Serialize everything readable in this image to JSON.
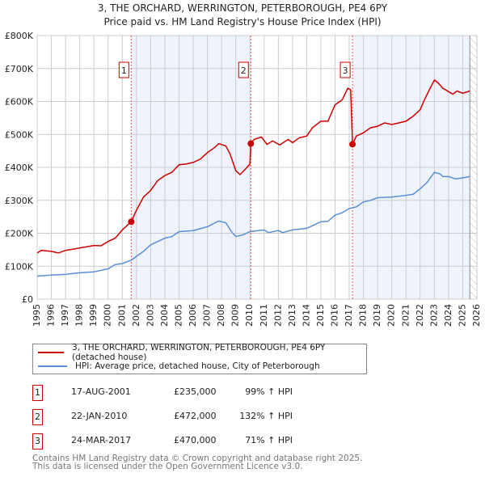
{
  "title": "3, THE ORCHARD, WERRINGTON, PETERBOROUGH, PE4 6PY",
  "subtitle": "Price paid vs. HM Land Registry's House Price Index (HPI)",
  "colors": {
    "property": "#cc0000",
    "hpi": "#5b8fd6",
    "shade": "#eef3fc"
  },
  "chart_data": {
    "type": "line",
    "xlim": [
      1995,
      2026
    ],
    "ylim": [
      0,
      800000
    ],
    "yticks": [
      {
        "v": 0,
        "label": "£0"
      },
      {
        "v": 100000,
        "label": "£100K"
      },
      {
        "v": 200000,
        "label": "£200K"
      },
      {
        "v": 300000,
        "label": "£300K"
      },
      {
        "v": 400000,
        "label": "£400K"
      },
      {
        "v": 500000,
        "label": "£500K"
      },
      {
        "v": 600000,
        "label": "£600K"
      },
      {
        "v": 700000,
        "label": "£700K"
      },
      {
        "v": 800000,
        "label": "£800K"
      }
    ],
    "xticks": [
      "1995",
      "1996",
      "1997",
      "1998",
      "1999",
      "2000",
      "2001",
      "2002",
      "2003",
      "2004",
      "2005",
      "2006",
      "2007",
      "2008",
      "2009",
      "2010",
      "2011",
      "2012",
      "2013",
      "2014",
      "2015",
      "2016",
      "2017",
      "2018",
      "2019",
      "2020",
      "2021",
      "2022",
      "2023",
      "2024",
      "2025",
      "2026"
    ],
    "series": [
      {
        "name": "3, THE ORCHARD, WERRINGTON, PETERBOROUGH, PE4 6PY (detached house)",
        "color": "#cc0000",
        "x": [
          1995,
          1995.3,
          1996,
          1996.5,
          1997,
          1998,
          1999,
          1999.5,
          2000,
          2000.5,
          2001,
          2001.63,
          2002,
          2002.5,
          2003,
          2003.5,
          2004,
          2004.5,
          2005,
          2005.5,
          2006,
          2006.5,
          2007,
          2007.5,
          2007.8,
          2008.3,
          2008.6,
          2009,
          2009.3,
          2009.8,
          2010.0,
          2010.06,
          2010.3,
          2010.8,
          2011.2,
          2011.6,
          2012.1,
          2012.7,
          2013,
          2013.5,
          2014,
          2014.4,
          2015,
          2015.5,
          2016,
          2016.5,
          2016.9,
          2017.1,
          2017.23,
          2017.5,
          2018,
          2018.5,
          2019,
          2019.5,
          2020,
          2020.5,
          2021,
          2021.5,
          2022,
          2022.3,
          2022.7,
          2023,
          2023.3,
          2023.6,
          2024,
          2024.3,
          2024.6,
          2025,
          2025.5
        ],
        "y": [
          140000,
          148000,
          145000,
          140000,
          148000,
          155000,
          163000,
          162000,
          175000,
          185000,
          210000,
          235000,
          270000,
          310000,
          330000,
          360000,
          375000,
          385000,
          408000,
          410000,
          415000,
          425000,
          445000,
          460000,
          472000,
          465000,
          440000,
          390000,
          378000,
          400000,
          410000,
          472000,
          485000,
          492000,
          470000,
          480000,
          468000,
          485000,
          475000,
          490000,
          495000,
          520000,
          540000,
          540000,
          590000,
          605000,
          640000,
          635000,
          470000,
          495000,
          505000,
          520000,
          525000,
          535000,
          530000,
          535000,
          540000,
          555000,
          575000,
          605000,
          640000,
          665000,
          655000,
          640000,
          630000,
          622000,
          632000,
          625000,
          632000
        ]
      },
      {
        "name": "HPI: Average price, detached house, City of Peterborough",
        "color": "#5b8fd6",
        "x": [
          1995,
          1996,
          1997,
          1998,
          1999,
          2000,
          2000.5,
          2001,
          2001.63,
          2002,
          2002.5,
          2003,
          2004,
          2004.5,
          2005,
          2006,
          2007,
          2007.8,
          2008.3,
          2008.7,
          2009,
          2009.5,
          2010,
          2011,
          2011.3,
          2012,
          2012.3,
          2013,
          2014,
          2014.5,
          2015,
          2015.5,
          2016,
          2016.5,
          2017,
          2017.5,
          2018,
          2018.5,
          2019,
          2020,
          2021,
          2021.5,
          2022,
          2022.5,
          2023,
          2023.4,
          2023.6,
          2024,
          2024.5,
          2025,
          2025.5
        ],
        "y": [
          70000,
          73000,
          75000,
          80000,
          83000,
          92000,
          105000,
          108000,
          118000,
          130000,
          145000,
          165000,
          185000,
          190000,
          205000,
          208000,
          220000,
          237000,
          232000,
          205000,
          190000,
          195000,
          205000,
          210000,
          202000,
          208000,
          202000,
          210000,
          215000,
          225000,
          235000,
          236000,
          255000,
          262000,
          275000,
          280000,
          295000,
          300000,
          308000,
          310000,
          315000,
          318000,
          335000,
          355000,
          385000,
          380000,
          372000,
          372000,
          365000,
          368000,
          372000
        ]
      }
    ],
    "sales": [
      {
        "n": "1",
        "x": 2001.63,
        "y": 235000,
        "date": "17-AUG-2001",
        "price": "£235,000",
        "hpi": "99% ↑ HPI"
      },
      {
        "n": "2",
        "x": 2010.06,
        "y": 472000,
        "date": "22-JAN-2010",
        "price": "£472,000",
        "hpi": "132% ↑ HPI"
      },
      {
        "n": "3",
        "x": 2017.23,
        "y": 470000,
        "date": "24-MAR-2017",
        "price": "£470,000",
        "hpi": "71% ↑ HPI"
      }
    ],
    "hatch_from": 2025.5
  },
  "footer": [
    "Contains HM Land Registry data © Crown copyright and database right 2025.",
    "This data is licensed under the Open Government Licence v3.0."
  ]
}
